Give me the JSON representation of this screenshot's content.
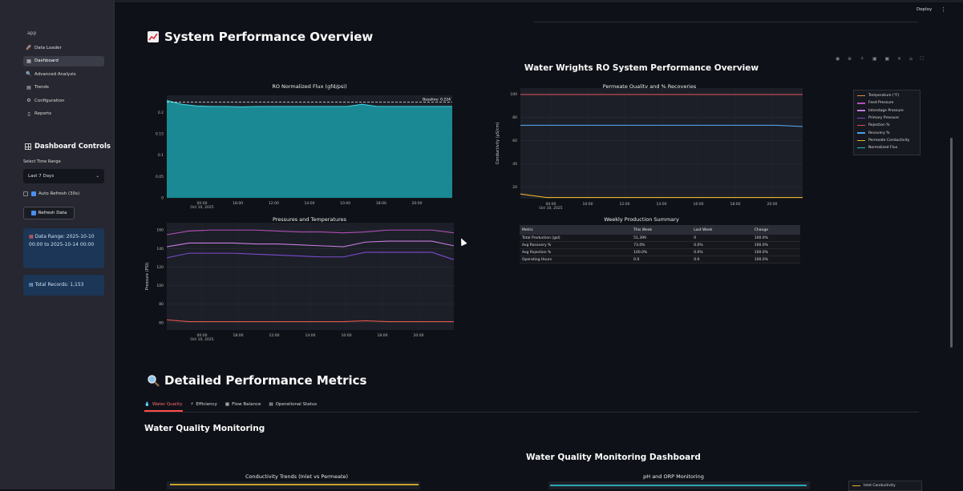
{
  "header": {
    "deploy_label": "Deploy",
    "menu_glyph": "⋮"
  },
  "sidebar": {
    "app_label": "app",
    "items": [
      {
        "label": "Data Loader",
        "icon": "rocket-icon",
        "glyph": "🚀",
        "active": false
      },
      {
        "label": "Dashboard",
        "icon": "dashboard-icon",
        "glyph": "▦",
        "active": true
      },
      {
        "label": "Advanced Analysis",
        "icon": "magnifier-icon",
        "glyph": "🔍",
        "active": false
      },
      {
        "label": "Trends",
        "icon": "chart-icon",
        "glyph": "▤",
        "active": false
      },
      {
        "label": "Configuration",
        "icon": "gear-icon",
        "glyph": "⚙",
        "active": false
      },
      {
        "label": "Reports",
        "icon": "document-icon",
        "glyph": "▯",
        "active": false
      }
    ],
    "controls_title": "Dashboard Controls",
    "time_range_label": "Select Time Range",
    "time_range_value": "Last 7 Days",
    "auto_refresh_label": "Auto Refresh (30s)",
    "refresh_button": "Refresh Data",
    "date_range_text": "Data Range: 2025-10-10 00:00 to 2025-10-14 00:00",
    "total_records_text": "Total Records: 1,153"
  },
  "main": {
    "title": "System Performance Overview",
    "figure_title": "Water Wrights RO System Performance Overview",
    "modebar_glyphs": "◉ ⊕ ＋ ▣ ▣ ✕ ⌂ ⛶",
    "legend": [
      {
        "label": "Temperature (°F)",
        "color": "#e0864a"
      },
      {
        "label": "Feed Pressure",
        "color": "#b04fb8"
      },
      {
        "label": "Interstage Pressure",
        "color": "#c77be0"
      },
      {
        "label": "Primary Pressure",
        "color": "#7b4bd0"
      },
      {
        "label": "Rejection %",
        "color": "#e04a5a"
      },
      {
        "label": "Recovery %",
        "color": "#4ea0e8"
      },
      {
        "label": "Permeate Conductivity",
        "color": "#e6b02a"
      },
      {
        "label": "Normalized Flux",
        "color": "#2ab7c4"
      }
    ],
    "summary_title": "Weekly Production Summary",
    "summary_headers": [
      "Metric",
      "This Week",
      "Last Week",
      "Change"
    ],
    "summary_rows": [
      [
        "Total Production (gal)",
        "51,399",
        "0",
        "100.0%"
      ],
      [
        "Avg Recovery %",
        "73.0%",
        "0.0%",
        "100.0%"
      ],
      [
        "Avg Rejection %",
        "100.0%",
        "0.0%",
        "100.0%"
      ],
      [
        "Operating Hours",
        "0.0",
        "0.0",
        "100.0%"
      ]
    ]
  },
  "detailed": {
    "title": "Detailed Performance Metrics",
    "tabs": [
      {
        "label": "Water Quality",
        "glyph": "💧",
        "active": true
      },
      {
        "label": "Efficiency",
        "glyph": "⚡",
        "active": false
      },
      {
        "label": "Flow Balance",
        "glyph": "▦",
        "active": false
      },
      {
        "label": "Operational Status",
        "glyph": "▤",
        "active": false
      }
    ],
    "section_title": "Water Quality Monitoring",
    "dashboard_title": "Water Quality Monitoring Dashboard",
    "chart_a_title": "Conductivity Trends (Inlet vs Permeate)",
    "chart_b_title": "pH and ORP Monitoring",
    "legend_first": "Inlet Conductivity"
  },
  "chart_data": [
    {
      "type": "area",
      "title": "RO Normalized Flux (gfd/psi)",
      "x_ticks": [
        "00:00\nOct 10, 2025",
        "18:00",
        "12:00",
        "14:00",
        "10:00",
        "18:00",
        "20:00"
      ],
      "y_ticks": [
        "0",
        "0.05",
        "0.1",
        "0.15",
        "0.2"
      ],
      "ylim": [
        0,
        0.24
      ],
      "series": [
        {
          "values": [
            0.228,
            0.219,
            0.215,
            0.214,
            0.214,
            0.213,
            0.214,
            0.214,
            0.214,
            0.214,
            0.214,
            0.214,
            0.214,
            0.219,
            0.214,
            0.214,
            0.214,
            0.214,
            0.214,
            0.214
          ],
          "color": "#1a8f9a"
        }
      ],
      "annotation": "Baseline: 0.224",
      "baseline": 0.224
    },
    {
      "type": "line",
      "title": "Permeate Quality and % Recoveries",
      "ylabel": "Conductivity (μS/cm)",
      "x_ticks": [
        "00:00\nOct 10, 2025",
        "10:00",
        "12:00",
        "14:00",
        "16:00",
        "18:00",
        "20:00"
      ],
      "y_ticks": [
        "20",
        "40",
        "60",
        "80",
        "100"
      ],
      "ylim": [
        10,
        105
      ],
      "series": [
        {
          "values": [
            99.5,
            99.5,
            99.5,
            99.5,
            99.5,
            99.5,
            99.5,
            99.5,
            99.5,
            99.5,
            99.5,
            99.5
          ],
          "color": "#e04a5a"
        },
        {
          "values": [
            73,
            73,
            73,
            73,
            73,
            73,
            73,
            73,
            73,
            73,
            73,
            72
          ],
          "color": "#4ea0e8"
        },
        {
          "values": [
            14,
            11,
            11,
            11,
            11,
            11,
            11,
            11,
            11,
            11,
            11,
            11
          ],
          "color": "#e6b02a"
        }
      ]
    },
    {
      "type": "line",
      "title": "Pressures and Temperatures",
      "ylabel": "Pressure (PSI)",
      "x_ticks": [
        "00:00\nOct 10, 2025",
        "18:00",
        "12:00",
        "14:00",
        "10:00",
        "18:00",
        "20:00"
      ],
      "y_ticks": [
        "60",
        "80",
        "100",
        "120",
        "140",
        "160"
      ],
      "ylim": [
        52,
        168
      ],
      "series": [
        {
          "values": [
            155,
            159,
            160,
            160,
            160,
            159,
            158,
            158,
            157,
            158,
            160,
            160,
            160,
            157
          ],
          "color": "#b04fb8"
        },
        {
          "values": [
            142,
            146,
            146,
            146,
            145,
            145,
            144,
            143,
            142,
            147,
            148,
            148,
            148,
            143
          ],
          "color": "#c77be0"
        },
        {
          "values": [
            130,
            135,
            135,
            135,
            134,
            133,
            132,
            131,
            131,
            136,
            136,
            136,
            136,
            128
          ],
          "color": "#7b4bd0"
        },
        {
          "values": [
            63,
            61,
            61,
            61,
            61,
            61,
            61,
            61,
            61,
            62,
            61,
            61,
            61,
            61
          ],
          "color": "#e0564a"
        }
      ]
    }
  ]
}
